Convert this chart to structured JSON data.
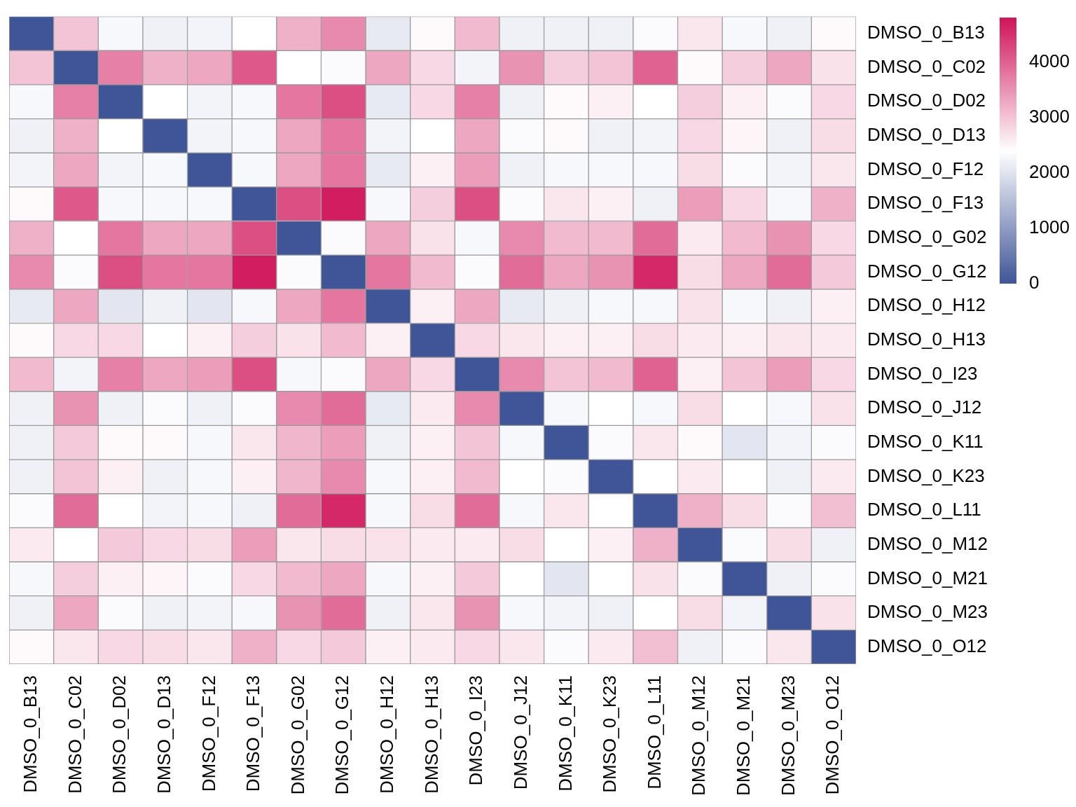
{
  "chart_data": {
    "type": "heatmap",
    "categories": [
      "DMSO_0_B13",
      "DMSO_0_C02",
      "DMSO_0_D02",
      "DMSO_0_D13",
      "DMSO_0_F12",
      "DMSO_0_F13",
      "DMSO_0_G02",
      "DMSO_0_G12",
      "DMSO_0_H12",
      "DMSO_0_H13",
      "DMSO_0_I23",
      "DMSO_0_J12",
      "DMSO_0_K11",
      "DMSO_0_K23",
      "DMSO_0_L11",
      "DMSO_0_M12",
      "DMSO_0_M21",
      "DMSO_0_M23",
      "DMSO_0_O12"
    ],
    "y_categories": [
      "DMSO_0_B13",
      "DMSO_0_C02",
      "DMSO_0_D02",
      "DMSO_0_D13",
      "DMSO_0_F12",
      "DMSO_0_F13",
      "DMSO_0_G02",
      "DMSO_0_G12",
      "DMSO_0_H12",
      "DMSO_0_H13",
      "DMSO_0_I23",
      "DMSO_0_J12",
      "DMSO_0_K11",
      "DMSO_0_K23",
      "DMSO_0_L11",
      "DMSO_0_M12",
      "DMSO_0_M21",
      "DMSO_0_M23",
      "DMSO_0_O12"
    ],
    "cells": [
      [
        0,
        3000,
        2300,
        2200,
        2250,
        2400,
        3200,
        3600,
        2100,
        2450,
        3100,
        2200,
        2200,
        2200,
        2350,
        2650,
        2300,
        2200,
        2450
      ],
      [
        3000,
        0,
        3700,
        3200,
        3300,
        4100,
        2400,
        2350,
        3300,
        2800,
        2250,
        3500,
        2900,
        3000,
        4000,
        2450,
        2900,
        3300,
        2700
      ],
      [
        2300,
        3700,
        0,
        2400,
        2250,
        2300,
        3800,
        4200,
        2100,
        2800,
        3700,
        2200,
        2450,
        2550,
        2400,
        2900,
        2550,
        2350,
        2800
      ],
      [
        2200,
        3200,
        2400,
        0,
        2250,
        2300,
        3300,
        3800,
        2250,
        2400,
        3300,
        2350,
        2450,
        2200,
        2250,
        2800,
        2500,
        2200,
        2750
      ],
      [
        2250,
        3300,
        2250,
        2300,
        0,
        2300,
        3300,
        3800,
        2100,
        2550,
        3400,
        2200,
        2300,
        2300,
        2300,
        2750,
        2350,
        2250,
        2650
      ],
      [
        2450,
        4100,
        2300,
        2300,
        2300,
        0,
        4200,
        4700,
        2300,
        2900,
        4200,
        2350,
        2650,
        2550,
        2200,
        3400,
        2800,
        2300,
        3200
      ],
      [
        3200,
        2400,
        3800,
        3300,
        3300,
        4200,
        0,
        2350,
        3300,
        2700,
        2300,
        3600,
        3100,
        3100,
        3900,
        2600,
        3100,
        3500,
        2800
      ],
      [
        3600,
        2350,
        4200,
        3800,
        3800,
        4700,
        2350,
        0,
        3800,
        3100,
        2350,
        3900,
        3300,
        3500,
        4600,
        2750,
        3300,
        3900,
        2950
      ],
      [
        2100,
        3300,
        2050,
        2200,
        2050,
        2300,
        3300,
        3800,
        0,
        2550,
        3300,
        2100,
        2200,
        2300,
        2300,
        2700,
        2300,
        2200,
        2550
      ],
      [
        2450,
        2800,
        2800,
        2400,
        2550,
        2900,
        2700,
        3100,
        2550,
        0,
        2800,
        2650,
        2550,
        2550,
        2750,
        2600,
        2550,
        2650,
        2600
      ],
      [
        3100,
        2250,
        3700,
        3300,
        3400,
        4200,
        2300,
        2350,
        3300,
        2800,
        0,
        3600,
        3000,
        3100,
        4000,
        2550,
        3000,
        3400,
        2800
      ],
      [
        2200,
        3500,
        2200,
        2350,
        2200,
        2350,
        3600,
        3900,
        2100,
        2600,
        3600,
        0,
        2300,
        2400,
        2300,
        2750,
        2400,
        2300,
        2700
      ],
      [
        2200,
        2950,
        2450,
        2450,
        2300,
        2650,
        3150,
        3400,
        2200,
        2550,
        3000,
        2300,
        0,
        2350,
        2650,
        2450,
        2050,
        2250,
        2350
      ],
      [
        2200,
        3000,
        2550,
        2200,
        2300,
        2550,
        3150,
        3600,
        2300,
        2550,
        3100,
        2400,
        2350,
        0,
        2400,
        2600,
        2400,
        2200,
        2600
      ],
      [
        2350,
        3900,
        2400,
        2250,
        2300,
        2200,
        3900,
        4600,
        2300,
        2750,
        3900,
        2300,
        2650,
        2400,
        0,
        3200,
        2750,
        2350,
        3050
      ],
      [
        2600,
        2400,
        2950,
        2800,
        2750,
        3400,
        2650,
        2750,
        2700,
        2600,
        2600,
        2750,
        2400,
        2550,
        3200,
        0,
        2350,
        2750,
        2200
      ],
      [
        2300,
        2900,
        2550,
        2500,
        2350,
        2800,
        3100,
        3300,
        2300,
        2550,
        2950,
        2400,
        2050,
        2400,
        2700,
        2350,
        0,
        2200,
        2350
      ],
      [
        2200,
        3300,
        2350,
        2200,
        2250,
        2300,
        3500,
        3900,
        2200,
        2650,
        3500,
        2300,
        2250,
        2200,
        2400,
        2750,
        2250,
        0,
        2700
      ],
      [
        2450,
        2650,
        2800,
        2750,
        2650,
        3200,
        2800,
        2950,
        2550,
        2600,
        2800,
        2650,
        2350,
        2600,
        3050,
        2200,
        2350,
        2650,
        0
      ]
    ],
    "clim": [
      0,
      4800
    ],
    "cticks": [
      0,
      1000,
      2000,
      3000,
      4000
    ]
  }
}
